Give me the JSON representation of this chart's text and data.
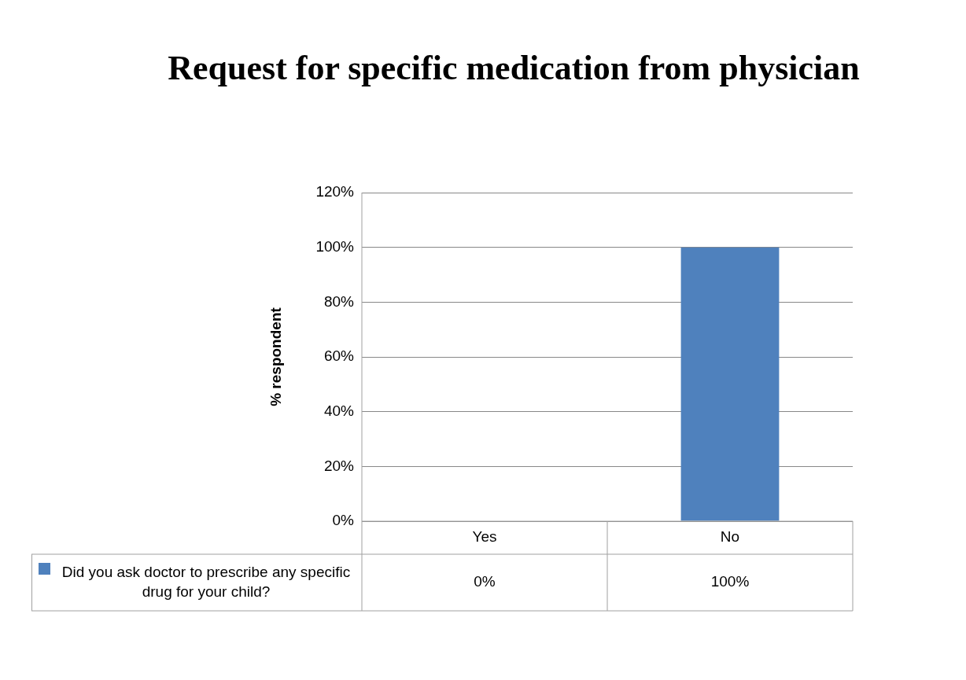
{
  "chart_data": {
    "type": "bar",
    "title": "Request for specific medication from physician",
    "ylabel": "% respondent",
    "categories": [
      "Yes",
      "No"
    ],
    "series": [
      {
        "name": "Did you ask doctor to prescribe any specific drug for your child?",
        "color": "#4f81bd",
        "values": [
          0,
          100
        ],
        "value_labels": [
          "0%",
          "100%"
        ]
      }
    ],
    "ylim": [
      0,
      120
    ],
    "yticks": [
      {
        "value": 0,
        "label": "0%"
      },
      {
        "value": 20,
        "label": "20%"
      },
      {
        "value": 40,
        "label": "40%"
      },
      {
        "value": 60,
        "label": "60%"
      },
      {
        "value": 80,
        "label": "80%"
      },
      {
        "value": 100,
        "label": "100%"
      },
      {
        "value": 120,
        "label": "120%"
      }
    ],
    "grid": "y",
    "legend": "bottom"
  }
}
